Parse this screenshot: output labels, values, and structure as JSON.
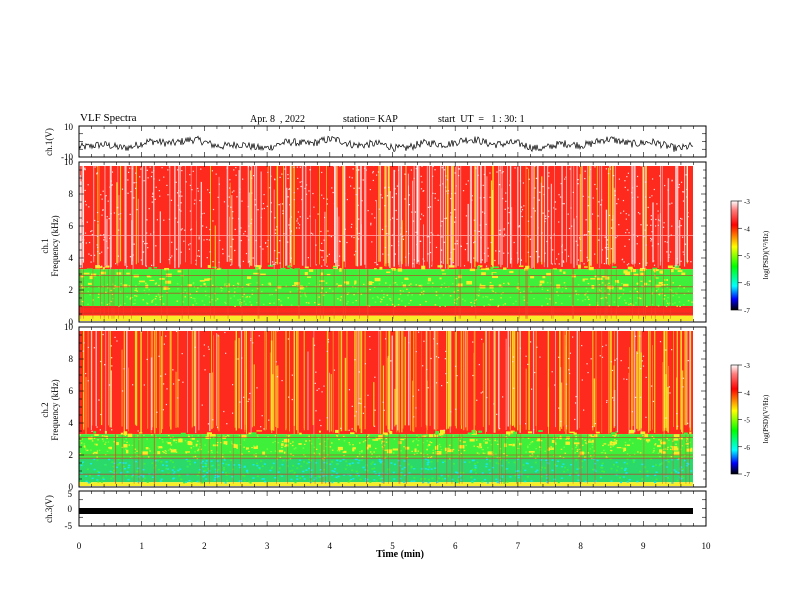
{
  "header": {
    "title": "VLF Spectra",
    "date": "Apr. 8  , 2022",
    "station": "station= KAP",
    "start_ut": "start  UT  =   1 : 30: 1"
  },
  "chart_data": [
    {
      "type": "line",
      "panel": "ch.1 waveform",
      "ylabel": "ch.1(V)",
      "ylim": [
        -10,
        10
      ],
      "yticks": [
        10,
        -10
      ],
      "xlim": [
        0,
        10
      ],
      "series": [
        {
          "color": "#000000",
          "values": "noisy waveform, roughly -5 to 3 V"
        }
      ]
    },
    {
      "type": "heatmap",
      "panel": "ch.1 spectrogram",
      "ylabel": "ch.1\nFrequency  (kHz)",
      "ylim": [
        0,
        10
      ],
      "yticks": [
        0,
        2,
        4,
        6,
        8,
        10
      ],
      "xlim": [
        0,
        9.85
      ],
      "colorbar": {
        "label": "log(PSD)(V²/Hz)",
        "range": [
          -7,
          -3
        ],
        "ticks": [
          -3,
          -4,
          -5,
          -6,
          -7
        ]
      },
      "bands_kHz": [
        {
          "range": [
            0,
            0.4
          ],
          "level": "yellow/orange speckle"
        },
        {
          "range": [
            0.4,
            1.0
          ],
          "level": "red/white"
        },
        {
          "range": [
            1.0,
            3.3
          ],
          "level": "green-yellow (~-5)"
        },
        {
          "range": [
            3.3,
            10
          ],
          "level": "red (~-4) with white streaks"
        }
      ]
    },
    {
      "type": "heatmap",
      "panel": "ch.2 spectrogram",
      "ylabel": "ch.2\nFrequency  (kHz)",
      "ylim": [
        0,
        10
      ],
      "yticks": [
        0,
        2,
        4,
        6,
        8,
        10
      ],
      "xlim": [
        0,
        9.85
      ],
      "colorbar": {
        "label": "log(PSD)(V²/Hz)",
        "range": [
          -7,
          -3
        ],
        "ticks": [
          -3,
          -4,
          -5,
          -6,
          -7
        ]
      },
      "bands_kHz": [
        {
          "range": [
            0,
            0.3
          ],
          "level": "yellow/orange"
        },
        {
          "range": [
            0.3,
            1.8
          ],
          "level": "green/cyan (~-5.5)"
        },
        {
          "range": [
            1.8,
            3.3
          ],
          "level": "green-yellow (~-5)"
        },
        {
          "range": [
            3.3,
            10
          ],
          "level": "red (~-4) with yellow streaks"
        }
      ]
    },
    {
      "type": "line",
      "panel": "ch.3 waveform",
      "ylabel": "ch.3(V)",
      "ylim": [
        -5,
        5
      ],
      "yticks": [
        5,
        0,
        -5
      ],
      "xlim": [
        0,
        10
      ],
      "series": [
        {
          "color": "#000000",
          "values": "flat band around -1 V"
        }
      ]
    }
  ],
  "xaxis": {
    "label": "Time  (min)",
    "ticks": [
      "0",
      "1",
      "2",
      "3",
      "4",
      "5",
      "6",
      "7",
      "8",
      "9",
      "10"
    ]
  },
  "colors": {
    "red": "#ff2a1e",
    "yellow": "#f7ee29",
    "green": "#3ff03a",
    "cyan": "#18e6f0",
    "blue": "#1c1cff"
  }
}
